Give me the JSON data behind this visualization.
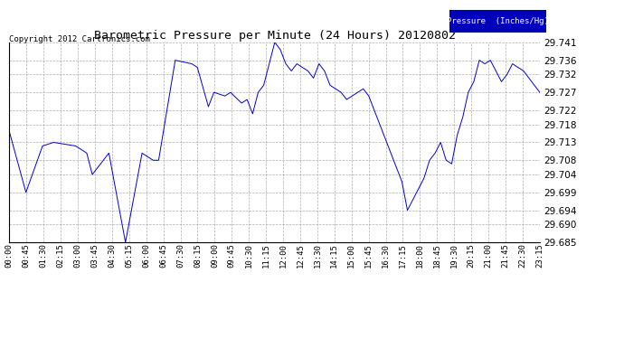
{
  "title": "Barometric Pressure per Minute (24 Hours) 20120802",
  "copyright": "Copyright 2012 Cartronics.com",
  "legend_label": "Pressure  (Inches/Hg)",
  "line_color": "#0000cc",
  "background_color": "#ffffff",
  "grid_color": "#999999",
  "ylim": [
    29.685,
    29.741
  ],
  "yticks": [
    29.685,
    29.69,
    29.694,
    29.699,
    29.704,
    29.708,
    29.713,
    29.718,
    29.722,
    29.727,
    29.732,
    29.736,
    29.741
  ],
  "xtick_labels": [
    "00:00",
    "00:45",
    "01:30",
    "02:15",
    "03:00",
    "03:45",
    "04:30",
    "05:15",
    "06:00",
    "06:45",
    "07:30",
    "08:15",
    "09:00",
    "09:45",
    "10:30",
    "11:15",
    "12:00",
    "12:45",
    "13:30",
    "14:15",
    "15:00",
    "15:45",
    "16:30",
    "17:15",
    "18:00",
    "18:45",
    "19:30",
    "20:15",
    "21:00",
    "21:45",
    "22:30",
    "23:15"
  ],
  "waypoints": [
    [
      0,
      29.716
    ],
    [
      45,
      29.699
    ],
    [
      90,
      29.712
    ],
    [
      120,
      29.713
    ],
    [
      180,
      29.712
    ],
    [
      210,
      29.71
    ],
    [
      225,
      29.704
    ],
    [
      270,
      29.71
    ],
    [
      315,
      29.685
    ],
    [
      360,
      29.71
    ],
    [
      390,
      29.708
    ],
    [
      405,
      29.708
    ],
    [
      450,
      29.736
    ],
    [
      495,
      29.735
    ],
    [
      510,
      29.734
    ],
    [
      540,
      29.723
    ],
    [
      555,
      29.727
    ],
    [
      585,
      29.726
    ],
    [
      600,
      29.727
    ],
    [
      630,
      29.724
    ],
    [
      645,
      29.725
    ],
    [
      660,
      29.721
    ],
    [
      675,
      29.727
    ],
    [
      690,
      29.729
    ],
    [
      720,
      29.741
    ],
    [
      735,
      29.739
    ],
    [
      750,
      29.735
    ],
    [
      765,
      29.733
    ],
    [
      780,
      29.735
    ],
    [
      795,
      29.734
    ],
    [
      810,
      29.733
    ],
    [
      825,
      29.731
    ],
    [
      840,
      29.735
    ],
    [
      855,
      29.733
    ],
    [
      870,
      29.729
    ],
    [
      885,
      29.728
    ],
    [
      900,
      29.727
    ],
    [
      915,
      29.725
    ],
    [
      930,
      29.726
    ],
    [
      945,
      29.727
    ],
    [
      960,
      29.728
    ],
    [
      975,
      29.726
    ],
    [
      990,
      29.722
    ],
    [
      1005,
      29.718
    ],
    [
      1020,
      29.714
    ],
    [
      1035,
      29.71
    ],
    [
      1050,
      29.706
    ],
    [
      1065,
      29.702
    ],
    [
      1080,
      29.694
    ],
    [
      1095,
      29.697
    ],
    [
      1110,
      29.7
    ],
    [
      1125,
      29.703
    ],
    [
      1140,
      29.708
    ],
    [
      1155,
      29.71
    ],
    [
      1170,
      29.713
    ],
    [
      1185,
      29.708
    ],
    [
      1200,
      29.707
    ],
    [
      1215,
      29.715
    ],
    [
      1230,
      29.72
    ],
    [
      1245,
      29.727
    ],
    [
      1260,
      29.73
    ],
    [
      1275,
      29.736
    ],
    [
      1290,
      29.735
    ],
    [
      1305,
      29.736
    ],
    [
      1320,
      29.733
    ],
    [
      1335,
      29.73
    ],
    [
      1350,
      29.732
    ],
    [
      1365,
      29.735
    ],
    [
      1380,
      29.734
    ],
    [
      1395,
      29.733
    ],
    [
      1439,
      29.727
    ]
  ]
}
